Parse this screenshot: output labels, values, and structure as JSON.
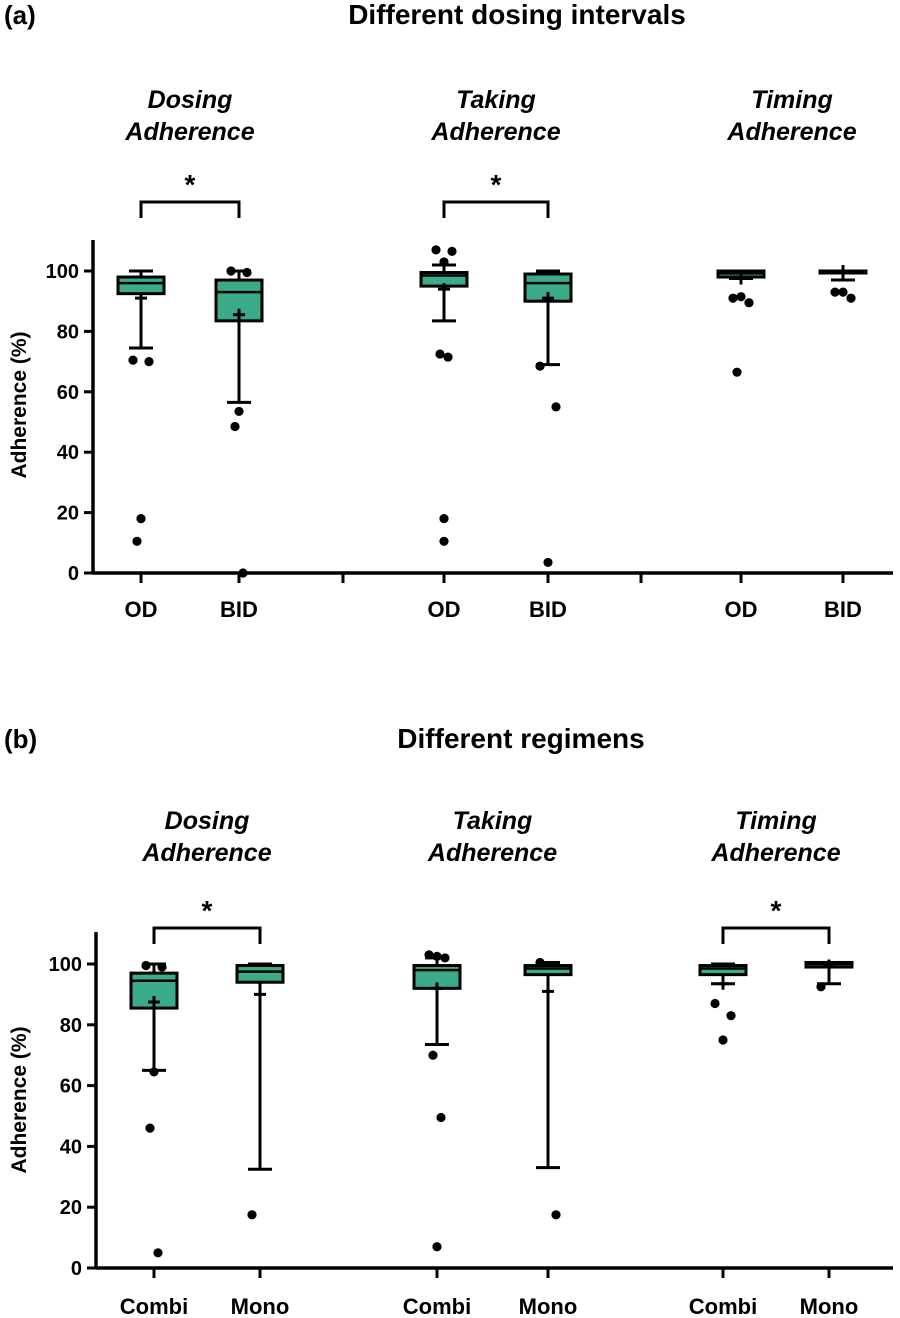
{
  "chart_data": [
    {
      "type": "box",
      "panel_label": "(a)",
      "title": "Different dosing intervals",
      "ylabel": "Adherence (%)",
      "ylim": [
        0,
        110
      ],
      "yticks": [
        0,
        20,
        40,
        60,
        80,
        100
      ],
      "box_color": "#3aaa8a",
      "groups": [
        {
          "label_line1": "Dosing",
          "label_line2": "Adherence",
          "significance": "*",
          "boxes": [
            {
              "category": "OD",
              "whisker_low": 74.5,
              "q1": 92.5,
              "median": 96,
              "q3": 98,
              "whisker_high": 100,
              "mean": 91,
              "outliers": [
                70.5,
                70,
                18,
                10.5
              ]
            },
            {
              "category": "BID",
              "whisker_low": 56.5,
              "q1": 83.5,
              "median": 93,
              "q3": 97,
              "whisker_high": 100,
              "mean": 85.5,
              "outliers": [
                100,
                99.5,
                53.5,
                48.5,
                0
              ]
            }
          ]
        },
        {
          "label_line1": "Taking",
          "label_line2": "Adherence",
          "significance": "*",
          "boxes": [
            {
              "category": "OD",
              "whisker_low": 83.5,
              "q1": 95,
              "median": 98.5,
              "q3": 99.5,
              "whisker_high": 102,
              "mean": 94,
              "outliers": [
                107,
                106.5,
                103,
                72.5,
                71.5,
                18,
                10.5
              ]
            },
            {
              "category": "BID",
              "whisker_low": 69,
              "q1": 90,
              "median": 96,
              "q3": 99,
              "whisker_high": 100,
              "mean": 91,
              "outliers": [
                68.5,
                55,
                3.5
              ]
            }
          ]
        },
        {
          "label_line1": "Timing",
          "label_line2": "Adherence",
          "significance": "",
          "boxes": [
            {
              "category": "OD",
              "whisker_low": 97.5,
              "q1": 98,
              "median": 99.2,
              "q3": 100,
              "whisker_high": 100,
              "mean": 97.5,
              "outliers": [
                91,
                89.5,
                91.5,
                66.5
              ]
            },
            {
              "category": "BID",
              "whisker_low": 97,
              "q1": 99.5,
              "median": 100,
              "q3": 100,
              "whisker_high": 100,
              "mean": 100,
              "outliers": [
                93,
                91,
                93
              ]
            }
          ]
        }
      ]
    },
    {
      "type": "box",
      "panel_label": "(b)",
      "title": "Different regimens",
      "ylabel": "Adherence (%)",
      "ylim": [
        0,
        110
      ],
      "yticks": [
        0,
        20,
        40,
        60,
        80,
        100
      ],
      "box_color": "#3aaa8a",
      "groups": [
        {
          "label_line1": "Dosing",
          "label_line2": "Adherence",
          "significance": "*",
          "boxes": [
            {
              "category": "Combi",
              "whisker_low": 65,
              "q1": 85.5,
              "median": 94.5,
              "q3": 97,
              "whisker_high": 100,
              "mean": 87.5,
              "outliers": [
                99.5,
                99,
                64.5,
                46,
                5
              ]
            },
            {
              "category": "Mono",
              "whisker_low": 32.5,
              "q1": 94,
              "median": 97.5,
              "q3": 99.5,
              "whisker_high": 100,
              "mean": 90,
              "outliers": [
                17.5
              ]
            }
          ]
        },
        {
          "label_line1": "Taking",
          "label_line2": "Adherence",
          "significance": "",
          "boxes": [
            {
              "category": "Combi",
              "whisker_low": 73.5,
              "q1": 92,
              "median": 98,
              "q3": 99.5,
              "whisker_high": 102,
              "mean": 92,
              "outliers": [
                103,
                102,
                102.5,
                70,
                49.5,
                7
              ]
            },
            {
              "category": "Mono",
              "whisker_low": 33,
              "q1": 96.5,
              "median": 98.5,
              "q3": 99.5,
              "whisker_high": 100.5,
              "mean": 91,
              "outliers": [
                100.5,
                17.5
              ]
            }
          ]
        },
        {
          "label_line1": "Timing",
          "label_line2": "Adherence",
          "significance": "*",
          "boxes": [
            {
              "category": "Combi",
              "whisker_low": 93.5,
              "q1": 96.5,
              "median": 98.5,
              "q3": 99.5,
              "whisker_high": 100,
              "mean": 93.5,
              "outliers": [
                87,
                83,
                75
              ]
            },
            {
              "category": "Mono",
              "whisker_low": 93.5,
              "q1": 99,
              "median": 100,
              "q3": 100.5,
              "whisker_high": 100.5,
              "mean": 99.5,
              "outliers": [
                92.5
              ]
            }
          ]
        }
      ]
    }
  ]
}
